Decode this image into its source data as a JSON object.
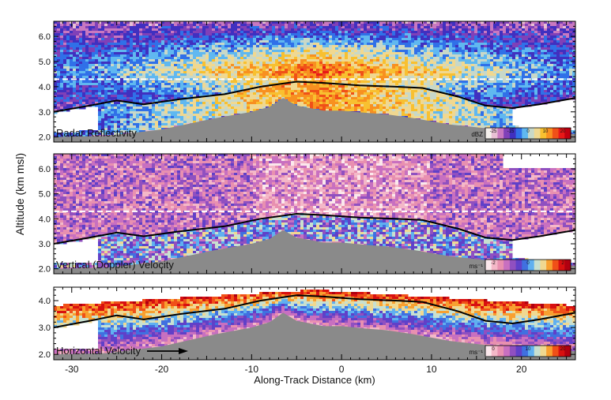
{
  "figure": {
    "ylabel": "Altitude (km msl)",
    "xlabel": "Along-Track Distance (km)"
  },
  "colors": {
    "terrain": "#8a8a8a",
    "contour": "#000000",
    "dashed_line": "#ffffff",
    "background": "#ffffff"
  },
  "chart_data": [
    {
      "type": "heatmap",
      "panel_label": "Radar Reflectivity",
      "x_range": [
        -32,
        26
      ],
      "ylim": [
        1.8,
        6.6
      ],
      "y_ticks": [
        "2.0",
        "3.0",
        "4.0",
        "5.0",
        "6.0"
      ],
      "y_tick_values": [
        2,
        3,
        4,
        5,
        6
      ],
      "colorbar": {
        "unit": "dBZ",
        "ticks": [
          "-25",
          "-15",
          "0",
          "10",
          "20"
        ]
      },
      "dashed_line_altitude": 4.3,
      "show_x_ticklabels": false,
      "palette": [
        "#f4f0ec",
        "#e8c0d4",
        "#c878c0",
        "#8040b8",
        "#4030c0",
        "#3070e8",
        "#60b8f0",
        "#c8d8c8",
        "#f0d890",
        "#f8c030",
        "#f89020",
        "#f05018",
        "#e81818",
        "#c00010"
      ]
    },
    {
      "type": "heatmap",
      "panel_label": "Vertical (Doppler) Velocity",
      "x_range": [
        -32,
        26
      ],
      "ylim": [
        1.8,
        6.6
      ],
      "y_ticks": [
        "2.0",
        "3.0",
        "4.0",
        "5.0",
        "6.0"
      ],
      "y_tick_values": [
        2,
        3,
        4,
        5,
        6
      ],
      "colorbar": {
        "unit": "ms⁻¹",
        "ticks": [
          "-2",
          "0",
          "2"
        ]
      },
      "dashed_line_altitude": 4.3,
      "show_x_ticklabels": false,
      "palette": [
        "#fbe8ec",
        "#f4b8c8",
        "#e890b0",
        "#c870c0",
        "#9050c0",
        "#6040c8",
        "#4070e0",
        "#60b0f0",
        "#c8e0d0",
        "#f0d890",
        "#f8a030",
        "#f05018",
        "#d81010",
        "#b00010"
      ]
    },
    {
      "type": "heatmap",
      "panel_label": "Horizontal Velocity",
      "x_range": [
        -32,
        26
      ],
      "ylim": [
        1.8,
        4.5
      ],
      "y_ticks": [
        "2.0",
        "3.0",
        "4.0"
      ],
      "y_tick_values": [
        2,
        3,
        4
      ],
      "colorbar": {
        "unit": "ms⁻¹",
        "ticks": [
          "0",
          "10",
          "20"
        ]
      },
      "show_x_ticklabels": true,
      "x_ticks": [
        "-30",
        "-20",
        "-10",
        "0",
        "10",
        "20"
      ],
      "x_tick_values": [
        -30,
        -20,
        -10,
        0,
        10,
        20
      ],
      "palette": [
        "#fbe8ec",
        "#f4b8c8",
        "#e890b0",
        "#c870c0",
        "#9050c0",
        "#6040c8",
        "#4070e0",
        "#60b0f0",
        "#c8e0d0",
        "#f0d890",
        "#f8a030",
        "#f05018",
        "#d81010",
        "#b00010"
      ]
    }
  ],
  "terrain_profile": {
    "x": [
      -32,
      -26,
      -20,
      -14,
      -10,
      -8,
      -6.5,
      -5,
      -2,
      0,
      3,
      5,
      8,
      12,
      16,
      20,
      24,
      26
    ],
    "altitude": [
      2.0,
      2.05,
      2.3,
      2.75,
      3.0,
      3.2,
      3.55,
      3.25,
      3.05,
      3.05,
      2.95,
      2.9,
      2.75,
      2.5,
      2.35,
      2.25,
      2.15,
      2.12
    ]
  },
  "contour_line": {
    "x": [
      -32,
      -28,
      -25,
      -22,
      -18,
      -13,
      -9,
      -5,
      -2,
      2,
      6,
      9,
      13,
      16,
      19,
      22,
      26
    ],
    "altitude": [
      3.0,
      3.25,
      3.45,
      3.3,
      3.5,
      3.7,
      4.0,
      4.2,
      4.15,
      4.05,
      4.0,
      3.95,
      3.6,
      3.25,
      3.15,
      3.3,
      3.55
    ]
  }
}
